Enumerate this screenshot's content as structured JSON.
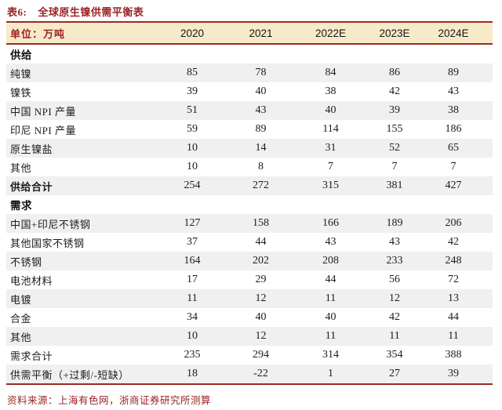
{
  "title": {
    "prefix": "表6:",
    "text": "全球原生镍供需平衡表"
  },
  "table": {
    "unit_label": "单位：万吨",
    "columns": [
      "2020",
      "2021",
      "2022E",
      "2023E",
      "2024E"
    ],
    "rows": [
      {
        "type": "section",
        "shaded": false,
        "label": "供给",
        "values": []
      },
      {
        "type": "data",
        "shaded": true,
        "label": "纯镍",
        "values": [
          "85",
          "78",
          "84",
          "86",
          "89"
        ]
      },
      {
        "type": "data",
        "shaded": false,
        "label": "镍铁",
        "values": [
          "39",
          "40",
          "38",
          "42",
          "43"
        ]
      },
      {
        "type": "data",
        "shaded": true,
        "label": "中国 NPI 产量",
        "values": [
          "51",
          "43",
          "40",
          "39",
          "38"
        ]
      },
      {
        "type": "data",
        "shaded": false,
        "label": "印尼 NPI 产量",
        "values": [
          "59",
          "89",
          "114",
          "155",
          "186"
        ]
      },
      {
        "type": "data",
        "shaded": true,
        "label": "原生镍盐",
        "values": [
          "10",
          "14",
          "31",
          "52",
          "65"
        ]
      },
      {
        "type": "data",
        "shaded": false,
        "label": "其他",
        "values": [
          "10",
          "8",
          "7",
          "7",
          "7"
        ]
      },
      {
        "type": "total",
        "shaded": true,
        "label": "供给合计",
        "values": [
          "254",
          "272",
          "315",
          "381",
          "427"
        ]
      },
      {
        "type": "section",
        "shaded": false,
        "label": "需求",
        "values": []
      },
      {
        "type": "data",
        "shaded": true,
        "label": "中国+印尼不锈钢",
        "values": [
          "127",
          "158",
          "166",
          "189",
          "206"
        ]
      },
      {
        "type": "data",
        "shaded": false,
        "label": "其他国家不锈钢",
        "values": [
          "37",
          "44",
          "43",
          "43",
          "42"
        ]
      },
      {
        "type": "data",
        "shaded": true,
        "label": "不锈钢",
        "values": [
          "164",
          "202",
          "208",
          "233",
          "248"
        ]
      },
      {
        "type": "data",
        "shaded": false,
        "label": "电池材料",
        "values": [
          "17",
          "29",
          "44",
          "56",
          "72"
        ]
      },
      {
        "type": "data",
        "shaded": true,
        "label": "电镀",
        "values": [
          "11",
          "12",
          "11",
          "12",
          "13"
        ]
      },
      {
        "type": "data",
        "shaded": false,
        "label": "合金",
        "values": [
          "34",
          "40",
          "40",
          "42",
          "44"
        ]
      },
      {
        "type": "data",
        "shaded": true,
        "label": "其他",
        "values": [
          "10",
          "12",
          "11",
          "11",
          "11"
        ]
      },
      {
        "type": "data",
        "shaded": false,
        "label": "需求合计",
        "values": [
          "235",
          "294",
          "314",
          "354",
          "388"
        ]
      },
      {
        "type": "data",
        "shaded": true,
        "label": "供需平衡（+过剩/-短缺）",
        "values": [
          "18",
          "-22",
          "1",
          "27",
          "39"
        ]
      }
    ]
  },
  "footer": {
    "source": "资料来源：上海有色网，浙商证券研究所测算"
  },
  "colors": {
    "accent_red": "#9C2B23",
    "red_text": "#9A2323",
    "header_bg": "#F7EAC8",
    "shaded_row_bg": "#F0F0F0"
  }
}
